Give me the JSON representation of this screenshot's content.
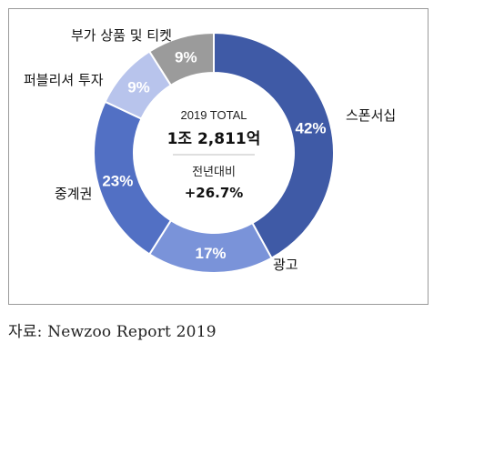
{
  "chart_data": {
    "type": "donut",
    "title": "",
    "series": [
      {
        "name": "스폰서십",
        "value": 42,
        "label": "42%",
        "color": "#3f5aa6"
      },
      {
        "name": "광고",
        "value": 17,
        "label": "17%",
        "color": "#7a93d9"
      },
      {
        "name": "중계권",
        "value": 23,
        "label": "23%",
        "color": "#5270c4"
      },
      {
        "name": "퍼블리셔 투자",
        "value": 9,
        "label": "9%",
        "color": "#b8c4ec"
      },
      {
        "name": "부가 상품 및 티켓",
        "value": 9,
        "label": "9%",
        "color": "#9b9b9b"
      }
    ],
    "center": {
      "year_total": "2019 TOTAL",
      "total_value": "1조 2,811억",
      "growth_label": "전년대비",
      "growth_value": "+26.7%"
    }
  },
  "source": "자료: Newzoo Report 2019"
}
